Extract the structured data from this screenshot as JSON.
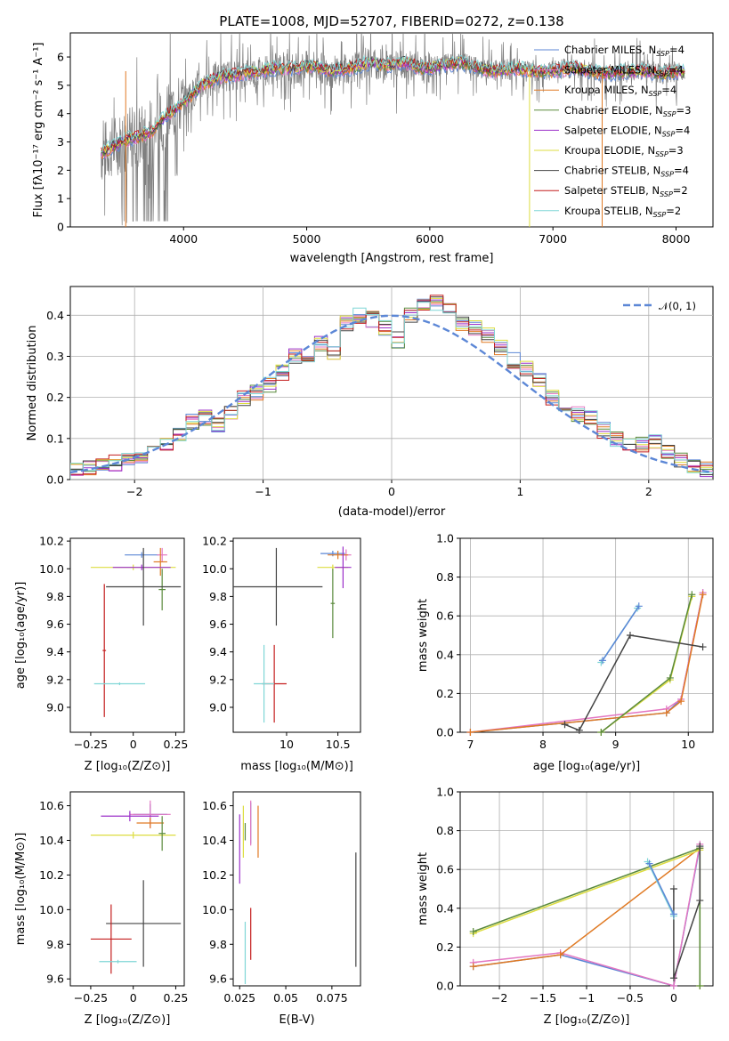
{
  "figure": {
    "title": "PLATE=1008, MJD=52707, FIBERID=0272, z=0.138"
  },
  "chart_data": [
    {
      "id": "spectrum",
      "type": "line",
      "title": "PLATE=1008, MJD=52707, FIBERID=0272, z=0.138",
      "xlabel": "wavelength [Angstrom, rest frame]",
      "ylabel": "Flux [f_λ 10^-17 erg cm^-2 s^-1 A^-1]",
      "xlim": [
        3080,
        8300
      ],
      "ylim": [
        0,
        6.85
      ],
      "xticks": [
        4000,
        5000,
        6000,
        7000,
        8000
      ],
      "yticks": [
        0,
        1,
        2,
        3,
        4,
        5,
        6
      ],
      "legend_position": "right",
      "series": [
        {
          "name": "Chabrier MILES, N_SSP=4",
          "color": "#5c87d6"
        },
        {
          "name": "Salpeter MILES, N_SSP=4",
          "color": "#e377c2"
        },
        {
          "name": "Kroupa MILES, N_SSP=4",
          "color": "#e07a24"
        },
        {
          "name": "Chabrier ELODIE, N_SSP=3",
          "color": "#5a8a3c"
        },
        {
          "name": "Salpeter ELODIE, N_SSP=4",
          "color": "#9b30c9"
        },
        {
          "name": "Kroupa ELODIE, N_SSP=3",
          "color": "#dddd40"
        },
        {
          "name": "Chabrier STELIB, N_SSP=4",
          "color": "#444444"
        },
        {
          "name": "Salpeter STELIB, N_SSP=2",
          "color": "#c41e1e"
        },
        {
          "name": "Kroupa STELIB, N_SSP=2",
          "color": "#7fd6d6"
        }
      ],
      "model_continuum": {
        "x": [
          3330,
          3450,
          3550,
          3650,
          3750,
          3850,
          3950,
          4050,
          4150,
          4300,
          4450,
          4600,
          4750,
          4900,
          5050,
          5200,
          5350,
          5500,
          5650,
          5800,
          5950,
          6100,
          6250,
          6400,
          6550,
          6700,
          6850,
          7000,
          7150,
          7300,
          7450,
          7600,
          7750,
          7900,
          8050
        ],
        "y": [
          2.6,
          2.9,
          3.1,
          3.2,
          3.4,
          3.9,
          4.2,
          4.6,
          5.0,
          5.3,
          5.4,
          5.5,
          5.6,
          5.6,
          5.7,
          5.5,
          5.6,
          5.8,
          5.7,
          5.8,
          5.6,
          5.7,
          5.8,
          5.6,
          5.5,
          5.6,
          5.5,
          5.5,
          5.6,
          5.5,
          5.4,
          5.5,
          5.5,
          5.4,
          5.5
        ]
      }
    },
    {
      "id": "residuals",
      "type": "histogram",
      "xlabel": "(data-model)/error",
      "ylabel": "Normed distribution",
      "xlim": [
        -2.5,
        2.5
      ],
      "ylim": [
        0,
        0.47
      ],
      "xticks": [
        -2,
        -1,
        0,
        1,
        2
      ],
      "yticks": [
        0.0,
        0.1,
        0.2,
        0.3,
        0.4
      ],
      "legend_position": "top-right",
      "reference_curve": {
        "name": "N(0, 1)",
        "color": "#5c87d6",
        "style": "dashed"
      },
      "bins": [
        -2.5,
        -2.4,
        -2.3,
        -2.2,
        -2.1,
        -2.0,
        -1.9,
        -1.8,
        -1.7,
        -1.6,
        -1.5,
        -1.4,
        -1.3,
        -1.2,
        -1.1,
        -1.0,
        -0.9,
        -0.8,
        -0.7,
        -0.6,
        -0.5,
        -0.4,
        -0.3,
        -0.2,
        -0.1,
        0.0,
        0.1,
        0.2,
        0.3,
        0.4,
        0.5,
        0.6,
        0.7,
        0.8,
        0.9,
        1.0,
        1.1,
        1.2,
        1.3,
        1.4,
        1.5,
        1.6,
        1.7,
        1.8,
        1.9,
        2.0,
        2.1,
        2.2,
        2.3,
        2.4,
        2.5
      ],
      "heights": [
        0.025,
        0.03,
        0.035,
        0.04,
        0.05,
        0.06,
        0.07,
        0.085,
        0.11,
        0.14,
        0.15,
        0.13,
        0.16,
        0.2,
        0.21,
        0.23,
        0.26,
        0.3,
        0.29,
        0.33,
        0.31,
        0.38,
        0.4,
        0.39,
        0.37,
        0.34,
        0.4,
        0.42,
        0.43,
        0.41,
        0.38,
        0.37,
        0.35,
        0.32,
        0.29,
        0.27,
        0.24,
        0.2,
        0.18,
        0.16,
        0.15,
        0.12,
        0.1,
        0.09,
        0.085,
        0.09,
        0.07,
        0.05,
        0.035,
        0.025
      ]
    },
    {
      "id": "age-vs-Z",
      "type": "scatter",
      "xlabel": "Z [log10(Z/Z⊙)]",
      "ylabel": "age [log10(age/yr)]",
      "xlim": [
        -0.37,
        0.3
      ],
      "ylim": [
        8.82,
        10.22
      ],
      "xticks": [
        -0.25,
        0.0,
        0.25
      ],
      "yticks": [
        9.0,
        9.2,
        9.4,
        9.6,
        9.8,
        10.0,
        10.2
      ],
      "points": [
        {
          "x": 0.05,
          "y": 10.1,
          "xerr": 0.1,
          "yerr": 0.02,
          "color": "#5c87d6"
        },
        {
          "x": 0.17,
          "y": 10.1,
          "xerr": 0.03,
          "yerr": 0.05,
          "color": "#e377c2"
        },
        {
          "x": 0.16,
          "y": 10.05,
          "xerr": 0.04,
          "yerr": 0.1,
          "color": "#e07a24"
        },
        {
          "x": 0.0,
          "y": 10.01,
          "xerr": 0.25,
          "yerr": 0.02,
          "color": "#dddd40"
        },
        {
          "x": 0.05,
          "y": 10.01,
          "xerr": 0.17,
          "yerr": 0.02,
          "color": "#9b30c9"
        },
        {
          "x": 0.17,
          "y": 9.85,
          "xerr": 0.02,
          "yerr": 0.15,
          "color": "#5a8a3c"
        },
        {
          "x": 0.06,
          "y": 9.87,
          "xerr": 0.22,
          "yerr": 0.28,
          "color": "#444444"
        },
        {
          "x": -0.17,
          "y": 9.41,
          "xerr": 0.01,
          "yerr": 0.48,
          "color": "#c41e1e"
        },
        {
          "x": -0.08,
          "y": 9.17,
          "xerr": 0.15,
          "yerr": 0.01,
          "color": "#7fd6d6"
        }
      ]
    },
    {
      "id": "age-vs-mass",
      "type": "scatter",
      "xlabel": "mass [log10(M/M⊙)]",
      "ylabel": "",
      "xlim": [
        9.48,
        10.72
      ],
      "ylim": [
        8.82,
        10.22
      ],
      "xticks": [
        10.0,
        10.5
      ],
      "yticks": [
        9.0,
        9.2,
        9.4,
        9.6,
        9.8,
        10.0,
        10.2
      ],
      "points": [
        {
          "x": 10.45,
          "y": 10.11,
          "xerr": 0.12,
          "yerr": 0.02,
          "color": "#5c87d6"
        },
        {
          "x": 10.58,
          "y": 10.1,
          "xerr": 0.05,
          "yerr": 0.04,
          "color": "#e377c2"
        },
        {
          "x": 10.5,
          "y": 10.1,
          "xerr": 0.1,
          "yerr": 0.03,
          "color": "#e07a24"
        },
        {
          "x": 10.45,
          "y": 10.01,
          "xerr": 0.15,
          "yerr": 0.02,
          "color": "#dddd40"
        },
        {
          "x": 10.55,
          "y": 10.01,
          "xerr": 0.08,
          "yerr": 0.15,
          "color": "#9b30c9"
        },
        {
          "x": 10.45,
          "y": 9.75,
          "xerr": 0.02,
          "yerr": 0.25,
          "color": "#5a8a3c"
        },
        {
          "x": 9.9,
          "y": 9.87,
          "xerr": 0.45,
          "yerr": 0.28,
          "color": "#444444"
        },
        {
          "x": 9.88,
          "y": 9.17,
          "xerr": 0.12,
          "yerr": 0.28,
          "color": "#c41e1e"
        },
        {
          "x": 9.78,
          "y": 9.17,
          "xerr": 0.1,
          "yerr": 0.28,
          "color": "#7fd6d6"
        }
      ]
    },
    {
      "id": "mass-weight-vs-age",
      "type": "line",
      "xlabel": "age [log10(age/yr)]",
      "ylabel": "mass weight",
      "xlim": [
        6.86,
        10.34
      ],
      "ylim": [
        0,
        1.0
      ],
      "xticks": [
        7,
        8,
        9,
        10
      ],
      "yticks": [
        0.0,
        0.2,
        0.4,
        0.6,
        0.8,
        1.0
      ],
      "grid": true,
      "series": [
        {
          "color": "#5c87d6",
          "x": [
            7.0,
            9.7,
            9.9,
            10.2
          ],
          "y": [
            0.0,
            0.1,
            0.17,
            0.72
          ]
        },
        {
          "color": "#e377c2",
          "x": [
            7.0,
            9.7,
            9.9,
            10.2
          ],
          "y": [
            0.0,
            0.12,
            0.17,
            0.72
          ]
        },
        {
          "color": "#e07a24",
          "x": [
            7.0,
            9.7,
            9.9,
            10.2
          ],
          "y": [
            0.0,
            0.1,
            0.16,
            0.71
          ]
        },
        {
          "color": "#dddd40",
          "x": [
            8.8,
            9.75,
            10.05
          ],
          "y": [
            0.0,
            0.27,
            0.7
          ]
        },
        {
          "color": "#5a8a3c",
          "x": [
            8.8,
            9.75,
            10.05
          ],
          "y": [
            0.0,
            0.28,
            0.71
          ]
        },
        {
          "color": "#444444",
          "x": [
            8.3,
            8.5,
            9.2,
            10.2
          ],
          "y": [
            0.04,
            0.01,
            0.5,
            0.44
          ]
        },
        {
          "color": "#7fd6d6",
          "x": [
            8.8,
            9.3
          ],
          "y": [
            0.36,
            0.64
          ]
        },
        {
          "color": "#5c87d6",
          "x": [
            8.82,
            9.32
          ],
          "y": [
            0.37,
            0.65
          ]
        }
      ]
    },
    {
      "id": "mass-vs-Z",
      "type": "scatter",
      "xlabel": "Z [log10(Z/Z⊙)]",
      "ylabel": "mass [log10(M/M⊙)]",
      "xlim": [
        -0.37,
        0.3
      ],
      "ylim": [
        9.56,
        10.68
      ],
      "xticks": [
        -0.25,
        0.0,
        0.25
      ],
      "yticks": [
        9.6,
        9.8,
        10.0,
        10.2,
        10.4,
        10.6
      ],
      "points": [
        {
          "x": 0.1,
          "y": 10.55,
          "xerr": 0.1,
          "yerr": 0.06,
          "color": "#5c87d6"
        },
        {
          "x": 0.1,
          "y": 10.55,
          "xerr": 0.12,
          "yerr": 0.08,
          "color": "#e377c2"
        },
        {
          "x": 0.1,
          "y": 10.5,
          "xerr": 0.08,
          "yerr": 0.03,
          "color": "#e07a24"
        },
        {
          "x": 0.0,
          "y": 10.43,
          "xerr": 0.25,
          "yerr": 0.02,
          "color": "#dddd40"
        },
        {
          "x": -0.02,
          "y": 10.54,
          "xerr": 0.17,
          "yerr": 0.03,
          "color": "#9b30c9"
        },
        {
          "x": 0.17,
          "y": 10.44,
          "xerr": 0.02,
          "yerr": 0.1,
          "color": "#5a8a3c"
        },
        {
          "x": 0.06,
          "y": 9.92,
          "xerr": 0.22,
          "yerr": 0.25,
          "color": "#444444"
        },
        {
          "x": -0.13,
          "y": 9.83,
          "xerr": 0.12,
          "yerr": 0.2,
          "color": "#c41e1e"
        },
        {
          "x": -0.09,
          "y": 9.7,
          "xerr": 0.11,
          "yerr": 0.01,
          "color": "#7fd6d6"
        }
      ]
    },
    {
      "id": "mass-vs-ebv",
      "type": "scatter",
      "xlabel": "E(B-V)",
      "ylabel": "",
      "xlim": [
        0.0215,
        0.0905
      ],
      "ylim": [
        9.56,
        10.68
      ],
      "xticks": [
        0.025,
        0.05,
        0.075
      ],
      "yticks": [
        9.6,
        9.8,
        10.0,
        10.2,
        10.4,
        10.6
      ],
      "points": [
        {
          "x": 0.031,
          "y": 10.5,
          "yerr": 0.12,
          "color": "#5c87d6"
        },
        {
          "x": 0.031,
          "y": 10.5,
          "yerr": 0.13,
          "color": "#e377c2"
        },
        {
          "x": 0.035,
          "y": 10.45,
          "yerr": 0.15,
          "color": "#e07a24"
        },
        {
          "x": 0.027,
          "y": 10.45,
          "yerr": 0.15,
          "color": "#dddd40"
        },
        {
          "x": 0.025,
          "y": 10.35,
          "yerr": 0.2,
          "color": "#9b30c9"
        },
        {
          "x": 0.028,
          "y": 10.45,
          "yerr": 0.05,
          "color": "#5a8a3c"
        },
        {
          "x": 0.088,
          "y": 10.0,
          "yerr": 0.33,
          "color": "#444444"
        },
        {
          "x": 0.031,
          "y": 9.86,
          "yerr": 0.15,
          "color": "#c41e1e"
        },
        {
          "x": 0.028,
          "y": 9.75,
          "yerr": 0.18,
          "color": "#7fd6d6"
        }
      ]
    },
    {
      "id": "mass-weight-vs-Z",
      "type": "line",
      "xlabel": "Z [log10(Z/Z⊙)]",
      "ylabel": "mass weight",
      "xlim": [
        -2.45,
        0.45
      ],
      "ylim": [
        0,
        1.0
      ],
      "xticks": [
        -2.0,
        -1.5,
        -1.0,
        -0.5,
        0.0
      ],
      "yticks": [
        0.0,
        0.2,
        0.4,
        0.6,
        0.8,
        1.0
      ],
      "grid": true,
      "series": [
        {
          "color": "#5c87d6",
          "x": [
            -2.3,
            -1.3,
            0.0,
            0.3
          ],
          "y": [
            0.1,
            0.16,
            0.0,
            0.72
          ]
        },
        {
          "color": "#e377c2",
          "x": [
            -2.3,
            -1.3,
            0.0,
            0.3
          ],
          "y": [
            0.12,
            0.17,
            0.0,
            0.73
          ]
        },
        {
          "color": "#e07a24",
          "x": [
            -2.3,
            -1.3,
            0.3
          ],
          "y": [
            0.1,
            0.16,
            0.71
          ]
        },
        {
          "color": "#dddd40",
          "x": [
            -2.3,
            0.3,
            0.3
          ],
          "y": [
            0.27,
            0.7,
            0.0
          ]
        },
        {
          "color": "#5a8a3c",
          "x": [
            -2.3,
            0.3,
            0.3
          ],
          "y": [
            0.28,
            0.71,
            0.0
          ]
        },
        {
          "color": "#444444",
          "x": [
            0.0,
            0.0,
            0.3,
            0.3
          ],
          "y": [
            0.5,
            0.04,
            0.44,
            0.72
          ]
        },
        {
          "color": "#7fd6d6",
          "x": [
            -0.3,
            0.0
          ],
          "y": [
            0.64,
            0.36
          ]
        },
        {
          "color": "#5c87d6",
          "x": [
            -0.28,
            0.0
          ],
          "y": [
            0.63,
            0.37
          ]
        }
      ]
    }
  ]
}
